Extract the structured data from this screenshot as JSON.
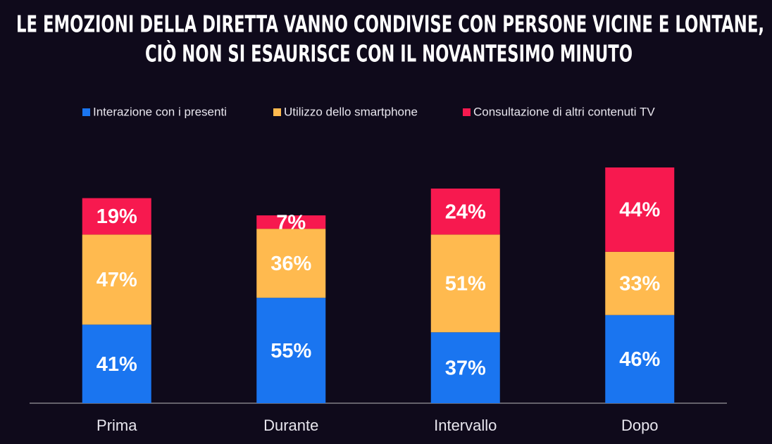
{
  "chart_data": {
    "type": "stacked-bar",
    "title": [
      "LE EMOZIONI DELLA DIRETTA VANNO CONDIVISE CON PERSONE VICINE E LONTANE,",
      "CIÒ NON SI ESAURISCE CON IL NOVANTESIMO MINUTO"
    ],
    "categories": [
      "Prima",
      "Durante",
      "Intervallo",
      "Dopo"
    ],
    "series": [
      {
        "name": "Interazione con i presenti",
        "color": "#1a75f0",
        "values": [
          41,
          55,
          37,
          46
        ],
        "value_labels": [
          "41%",
          "55%",
          "37%",
          "46%"
        ]
      },
      {
        "name": "Utilizzo dello smartphone",
        "color": "#ffba4f",
        "values": [
          47,
          36,
          51,
          33
        ],
        "value_labels": [
          "47%",
          "36%",
          "51%",
          "33%"
        ]
      },
      {
        "name": "Consultazione di altri contenuti TV",
        "color": "#f7194f",
        "values": [
          19,
          7,
          24,
          44
        ],
        "value_labels": [
          "19%",
          "7%",
          "24%",
          "44%"
        ]
      }
    ]
  }
}
